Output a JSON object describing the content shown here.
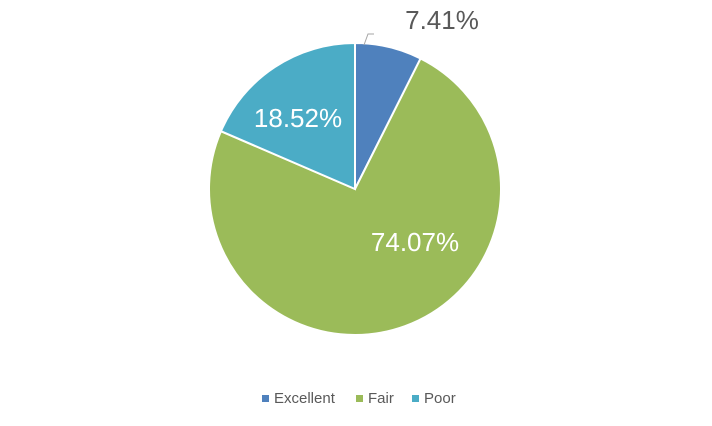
{
  "chart_data": {
    "type": "pie",
    "categories": [
      "Excellent",
      "Fair",
      "Poor"
    ],
    "values": [
      7.41,
      74.07,
      18.52
    ],
    "value_labels": [
      "7.41%",
      "74.07%",
      "18.52%"
    ],
    "colors": [
      "#4f81bd",
      "#9bbb59",
      "#4bacc6"
    ],
    "legend": "bottom"
  }
}
